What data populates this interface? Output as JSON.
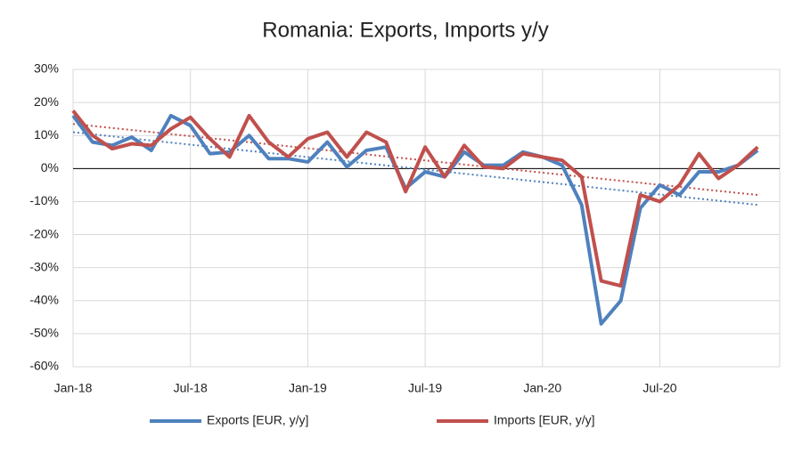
{
  "chart_data": {
    "type": "line",
    "title": "Romania: Exports, Imports y/y",
    "categories": [
      "Jan-18",
      null,
      null,
      null,
      null,
      null,
      "Jul-18",
      null,
      null,
      null,
      null,
      null,
      "Jan-19",
      null,
      null,
      null,
      null,
      null,
      "Jul-19",
      null,
      null,
      null,
      null,
      null,
      "Jan-20",
      null,
      null,
      null,
      null,
      null,
      "Jul-20",
      null,
      null,
      null,
      null,
      null
    ],
    "series": [
      {
        "name": "Exports [EUR, y/y]",
        "color": "#4f81bd",
        "values": [
          16,
          8,
          7,
          9.5,
          5.5,
          16,
          13,
          4.5,
          5,
          10,
          3,
          3,
          2,
          8,
          0.5,
          5.5,
          6.5,
          -6,
          -1,
          -2.5,
          5,
          1,
          1,
          5,
          3.5,
          1,
          -11,
          -47,
          -40,
          -12,
          -5,
          -8,
          -1,
          -1,
          1,
          5.5
        ],
        "trend": [
          11,
          -11
        ]
      },
      {
        "name": "Imports [EUR, y/y]",
        "color": "#c0504d",
        "values": [
          17.5,
          10,
          6,
          7.5,
          7,
          12,
          15.5,
          9,
          3.5,
          16,
          8,
          3.5,
          9,
          11,
          3.5,
          11,
          8,
          -7,
          6.5,
          -2.5,
          7,
          0.5,
          0,
          4.5,
          3.5,
          2.5,
          -2.5,
          -34,
          -35.5,
          -8,
          -10,
          -5,
          4.5,
          -3,
          1,
          6.5
        ],
        "trend": [
          13.5,
          -8
        ]
      }
    ],
    "ylim": [
      -60,
      30
    ],
    "yticks": [
      {
        "value": -60,
        "label": "-60%"
      },
      {
        "value": -50,
        "label": "-50%"
      },
      {
        "value": -40,
        "label": "-40%"
      },
      {
        "value": -30,
        "label": "-30%"
      },
      {
        "value": -20,
        "label": "-20%"
      },
      {
        "value": -10,
        "label": "-10%"
      },
      {
        "value": 0,
        "label": "0%"
      },
      {
        "value": 10,
        "label": "10%"
      },
      {
        "value": 20,
        "label": "20%"
      },
      {
        "value": 30,
        "label": "30%"
      }
    ],
    "grid": true,
    "legend": "bottom"
  }
}
